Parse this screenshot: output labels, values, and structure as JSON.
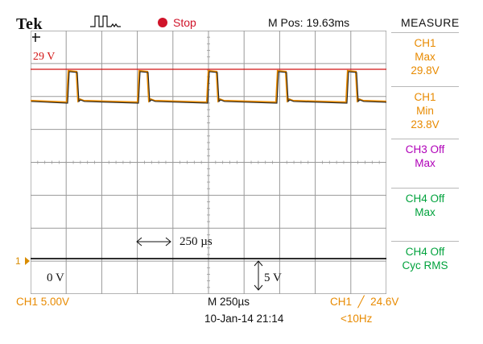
{
  "header": {
    "brand": "Tek",
    "acq_state": "Stop",
    "mpos_text": "M Pos: 19.63ms",
    "measure_title": "MEASURE"
  },
  "annotations": {
    "ref_level": "29 V",
    "zero_level": "0 V",
    "time_span": "250 µs",
    "volt_span": "5 V"
  },
  "measurements": [
    {
      "line1": "CH1",
      "line2": "Max",
      "line3": "29.8V",
      "color": "#e88a00"
    },
    {
      "line1": "CH1",
      "line2": "Min",
      "line3": "23.8V",
      "color": "#e88a00"
    },
    {
      "line1": "CH3 Off",
      "line2": "Max",
      "line3": "",
      "color": "#b000b8"
    },
    {
      "line1": "CH4 Off",
      "line2": "Max",
      "line3": "",
      "color": "#00a23c"
    },
    {
      "line1": "CH4 Off",
      "line2": "Cyc RMS",
      "line3": "",
      "color": "#00a23c"
    }
  ],
  "footer": {
    "ch1_scale": "CH1  5.00V",
    "timebase": "M 250µs",
    "trigger": "CH1  ╱  24.6V",
    "datetime": "10-Jan-14 21:14",
    "freq": "<10Hz",
    "ch1_marker": "1"
  },
  "colors": {
    "ch1": "#e88a00",
    "ref_line": "#d21414",
    "trace": "#111111",
    "grid": "#999999"
  }
}
